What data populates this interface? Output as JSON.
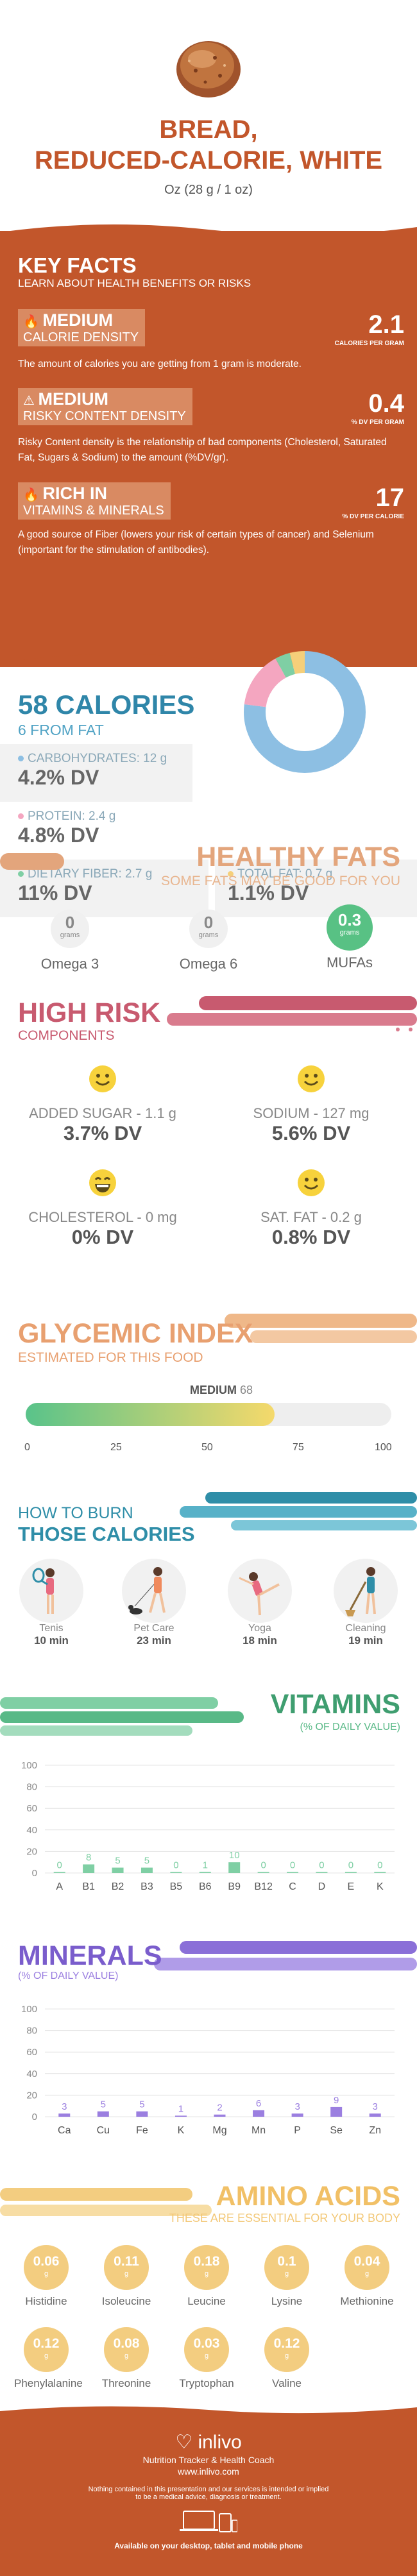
{
  "food": {
    "title_line1": "BREAD,",
    "title_line2": "REDUCED-CALORIE, WHITE",
    "serving": "Oz (28 g / 1 oz)",
    "icon": "bread-image"
  },
  "key_facts": {
    "title": "KEY FACTS",
    "subtitle": "LEARN ABOUT HEALTH BENEFITS OR RISKS",
    "items": [
      {
        "level": "MEDIUM",
        "label": "CALORIE DENSITY",
        "value": "2.1",
        "unit": "CALORIES PER GRAM",
        "desc": "The amount of calories you are getting from 1 gram is moderate.",
        "icon": "flame-icon"
      },
      {
        "level": "MEDIUM",
        "label": "RISKY CONTENT DENSITY",
        "value": "0.4",
        "unit": "% DV PER GRAM",
        "desc": "Risky Content density is the relationship of bad components (Cholesterol, Saturated Fat, Sugars & Sodium) to the amount (%DV/gr).",
        "icon": "warning-icon"
      },
      {
        "level": "RICH  IN",
        "label": "VITAMINS & MINERALS",
        "value": "17",
        "unit": "% DV PER CALORIE",
        "desc": "A good source of Fiber (lowers your risk of certain types of cancer) and Selenium (important for the stimulation of antibodies).",
        "icon": "flame-icon"
      }
    ]
  },
  "calories": {
    "title": "58 CALORIES",
    "subtitle": "6 FROM FAT",
    "nutrients": [
      {
        "label": "CARBOHYDRATES: 12 g",
        "dv": "4.2% DV",
        "color": "#8dbfe3"
      },
      {
        "label": "PROTEIN: 2.4 g",
        "dv": "4.8% DV",
        "color": "#f4a6c0"
      },
      {
        "label": "DIETARY FIBER: 2.7 g",
        "dv": "11% DV",
        "color": "#7fcfa4"
      },
      {
        "label": "TOTAL FAT: 0.7 g",
        "dv": "1.1% DV",
        "color": "#f5cf7a"
      }
    ],
    "donut": [
      {
        "value": 0.77,
        "color": "#8dbfe3"
      },
      {
        "value": 0.15,
        "color": "#f4a6c0"
      },
      {
        "value": 0.04,
        "color": "#7fcfa4"
      },
      {
        "value": 0.04,
        "color": "#f5cf7a"
      }
    ]
  },
  "healthy_fats": {
    "title": "HEALTHY FATS",
    "subtitle": "SOME FATS MAY BE GOOD FOR YOU",
    "unit": "grams",
    "items": [
      {
        "name": "Omega 3",
        "value": "0"
      },
      {
        "name": "Omega 6",
        "value": "0"
      },
      {
        "name": "MUFAs",
        "value": "0.3"
      }
    ]
  },
  "high_risk": {
    "title": "HIGH RISK",
    "subtitle": "COMPONENTS",
    "items": [
      {
        "label": "ADDED SUGAR - 1.1 g",
        "dv": "3.7% DV"
      },
      {
        "label": "SODIUM - 127 mg",
        "dv": "5.6% DV"
      },
      {
        "label": "CHOLESTEROL - 0 mg",
        "dv": "0% DV"
      },
      {
        "label": "SAT. FAT - 0.2 g",
        "dv": "0.8% DV"
      }
    ]
  },
  "glycemic": {
    "title": "GLYCEMIC INDEX",
    "subtitle": "ESTIMATED FOR THIS FOOD",
    "level": "MEDIUM",
    "value": "68",
    "fraction": 0.68,
    "ticks": [
      "0",
      "25",
      "50",
      "75",
      "100"
    ]
  },
  "burn": {
    "title_line1": "HOW TO BURN",
    "title_line2": "THOSE CALORIES",
    "items": [
      {
        "name": "Tenis",
        "time": "10 min",
        "icon": "tennis-icon"
      },
      {
        "name": "Pet Care",
        "time": "23 min",
        "icon": "dog-walking-icon"
      },
      {
        "name": "Yoga",
        "time": "18 min",
        "icon": "yoga-icon"
      },
      {
        "name": "Cleaning",
        "time": "19 min",
        "icon": "cleaning-icon"
      }
    ]
  },
  "vitamins": {
    "title": "VITAMINS",
    "subtitle": "(% OF DAILY VALUE)",
    "chart_data": {
      "type": "bar",
      "categories": [
        "A",
        "B1",
        "B2",
        "B3",
        "B5",
        "B6",
        "B9",
        "B12",
        "C",
        "D",
        "E",
        "K"
      ],
      "values": [
        0,
        8,
        5,
        5,
        0,
        1,
        10,
        0,
        0,
        0,
        0,
        0
      ],
      "labels": [
        "0",
        "8",
        "5",
        "5",
        "0",
        "1",
        "10",
        "0",
        "0",
        "0",
        "0",
        "0"
      ],
      "yticks": [
        "100",
        "80",
        "60",
        "40",
        "20",
        "0"
      ],
      "ylim": [
        0,
        100
      ],
      "color": "#7fcfa4"
    }
  },
  "minerals": {
    "title": "MINERALS",
    "subtitle": "(% OF DAILY VALUE)",
    "chart_data": {
      "type": "bar",
      "categories": [
        "Ca",
        "Cu",
        "Fe",
        "K",
        "Mg",
        "Mn",
        "P",
        "Se",
        "Zn"
      ],
      "values": [
        3,
        5,
        5,
        1,
        2,
        6,
        3,
        9,
        3
      ],
      "labels": [
        "3",
        "5",
        "5",
        "1",
        "2",
        "6",
        "3",
        "9",
        "3"
      ],
      "yticks": [
        "100",
        "80",
        "60",
        "40",
        "20",
        "0"
      ],
      "ylim": [
        0,
        100
      ],
      "color": "#9b7fe0"
    }
  },
  "amino": {
    "title": "AMINO ACIDS",
    "subtitle": "THESE ARE ESSENTIAL FOR YOUR BODY",
    "unit": "g",
    "items": [
      {
        "name": "Histidine",
        "value": "0.06"
      },
      {
        "name": "Isoleucine",
        "value": "0.11"
      },
      {
        "name": "Leucine",
        "value": "0.18"
      },
      {
        "name": "Lysine",
        "value": "0.1"
      },
      {
        "name": "Methionine",
        "value": "0.04"
      },
      {
        "name": "Phenylalanine",
        "value": "0.12"
      },
      {
        "name": "Threonine",
        "value": "0.08"
      },
      {
        "name": "Tryptophan",
        "value": "0.03"
      },
      {
        "name": "Valine",
        "value": "0.12"
      }
    ]
  },
  "footer": {
    "brand": "inlivo",
    "tagline": "Nutrition Tracker & Health Coach",
    "url": "www.inlivo.com",
    "disclaimer1": "Nothing contained in this presentation and our services is intended or implied",
    "disclaimer2": "to be a medical advice, diagnosis or treatment.",
    "available": "Available on your desktop, tablet and mobile phone"
  }
}
